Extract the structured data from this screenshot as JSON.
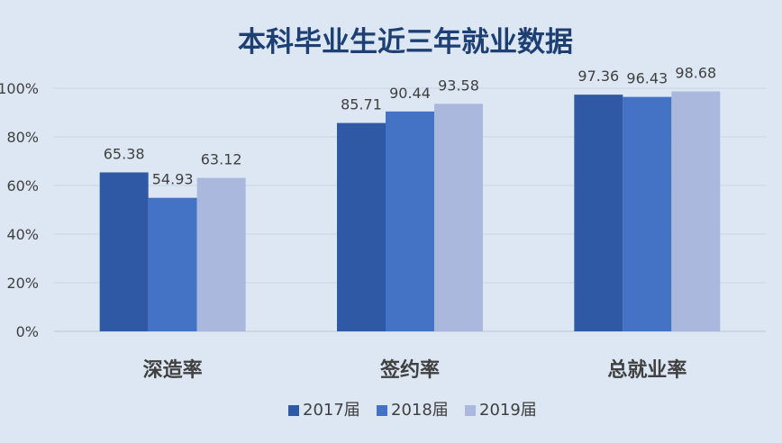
{
  "chart_data": {
    "type": "bar",
    "title": "本科毕业生近三年就业数据",
    "categories": [
      "深造率",
      "签约率",
      "总就业率"
    ],
    "series": [
      {
        "name": "2017届",
        "color": "#3059a5",
        "values": [
          65.38,
          85.71,
          97.36
        ]
      },
      {
        "name": "2018届",
        "color": "#4472c4",
        "values": [
          54.93,
          90.44,
          96.43
        ]
      },
      {
        "name": "2019届",
        "color": "#a9b8dc",
        "values": [
          63.12,
          93.58,
          98.68
        ]
      }
    ],
    "ylim": [
      0,
      100
    ],
    "yticks": [
      "0%",
      "20%",
      "40%",
      "60%",
      "80%",
      "100%"
    ],
    "grid": true,
    "legend": "bottom"
  }
}
